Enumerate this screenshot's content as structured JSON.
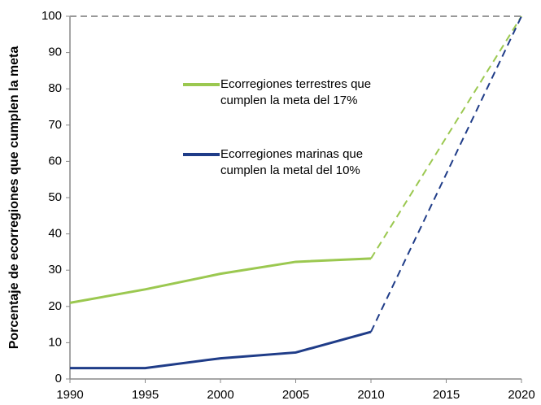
{
  "chart_data": {
    "type": "line",
    "y_label": "Porcentaje de ecorregiones que cumplen la meta",
    "x": [
      1990,
      1995,
      2000,
      2005,
      2010,
      2020
    ],
    "xlim": [
      1990,
      2020
    ],
    "xticks": [
      1990,
      1995,
      2000,
      2005,
      2010,
      2015,
      2020
    ],
    "ylim": [
      0,
      100
    ],
    "yticks": [
      0,
      10,
      20,
      30,
      40,
      50,
      60,
      70,
      80,
      90,
      100
    ],
    "grid": false,
    "dashed_from_index": 4,
    "reference_line": {
      "value": 100,
      "color": "#999999"
    },
    "series": [
      {
        "name": "Ecorregiones terrestres que\ncumplen la meta del 17%",
        "color": "#9bc850",
        "values": [
          21,
          24.7,
          29,
          32.3,
          33.2,
          100
        ]
      },
      {
        "name": "Ecorregiones marinas que\ncumplen la metal del 10%",
        "color": "#1f3c88",
        "values": [
          3,
          3,
          5.7,
          7.3,
          13,
          100
        ]
      }
    ]
  }
}
